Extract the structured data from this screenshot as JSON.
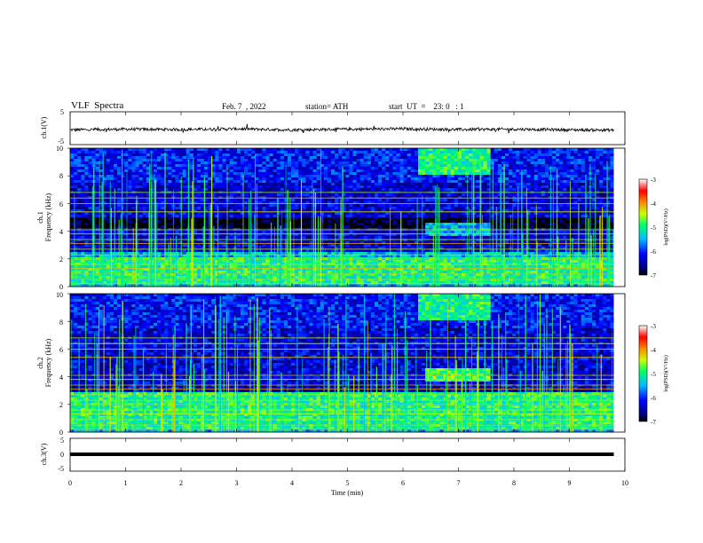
{
  "header": {
    "title": "VLF  Spectra",
    "date": "Feb. 7  , 2022",
    "station": "station= ATH",
    "start": "start  UT  =    23: 0   : 1"
  },
  "colorbar": {
    "label": "log(PSD)(V²/Hz)",
    "ticks": [
      "-3",
      "-4",
      "-5",
      "-6",
      "-7"
    ]
  },
  "chart_data": [
    {
      "type": "line",
      "name": "ch1-waveform",
      "ylabel": "ch.1(V)",
      "ylim": [
        -5,
        5
      ],
      "yticks": [
        "5",
        "-5"
      ],
      "x": [
        0,
        1,
        2,
        3,
        4,
        5,
        6,
        7,
        8,
        9,
        9.8
      ],
      "y": [
        -0.5,
        -0.3,
        -0.4,
        -0.2,
        -0.5,
        -0.3,
        -0.2,
        -0.4,
        -0.3,
        -0.5,
        -0.6
      ]
    },
    {
      "type": "heatmap",
      "name": "ch1-spectrogram",
      "ylabel": "ch.1\nFrequency  (kHz)",
      "ylim": [
        0,
        10
      ],
      "xlim": [
        0,
        10
      ],
      "data_end_min": 9.8,
      "yticks": [
        "0",
        "2",
        "4",
        "6",
        "8",
        "10"
      ],
      "features": [
        {
          "kind": "band",
          "f_min": 4.3,
          "f_max": 5.0,
          "level": -7
        },
        {
          "kind": "band",
          "f_min": 0.2,
          "f_max": 2.2,
          "level": -5
        },
        {
          "kind": "patch",
          "t_min": 6.4,
          "t_max": 7.6,
          "f_min": 3.6,
          "f_max": 4.6,
          "level": -5.5
        },
        {
          "kind": "patch",
          "t_min": 6.3,
          "t_max": 7.6,
          "f_min": 8.0,
          "f_max": 10.0,
          "level": -5
        }
      ]
    },
    {
      "type": "heatmap",
      "name": "ch2-spectrogram",
      "ylabel": "ch.2\nFrequency  (kHz)",
      "ylim": [
        0,
        10
      ],
      "xlim": [
        0,
        10
      ],
      "data_end_min": 9.8,
      "yticks": [
        "0",
        "2",
        "4",
        "6",
        "8",
        "10"
      ],
      "features": [
        {
          "kind": "band",
          "f_min": 0.2,
          "f_max": 2.8,
          "level": -5
        },
        {
          "kind": "patch",
          "t_min": 6.4,
          "t_max": 7.6,
          "f_min": 3.6,
          "f_max": 4.6,
          "level": -4.8
        },
        {
          "kind": "patch",
          "t_min": 6.3,
          "t_max": 7.6,
          "f_min": 8.0,
          "f_max": 10.0,
          "level": -5
        }
      ]
    },
    {
      "type": "line",
      "name": "ch3-waveform",
      "ylabel": "ch.3(V)",
      "ylim": [
        -5,
        5
      ],
      "yticks": [
        "5",
        "0",
        "-5"
      ],
      "xlabel": "Time  (min)",
      "xticks": [
        "0",
        "1",
        "2",
        "3",
        "4",
        "5",
        "6",
        "7",
        "8",
        "9",
        "10"
      ],
      "x": [
        0,
        9.8
      ],
      "y": [
        0,
        0
      ]
    }
  ]
}
